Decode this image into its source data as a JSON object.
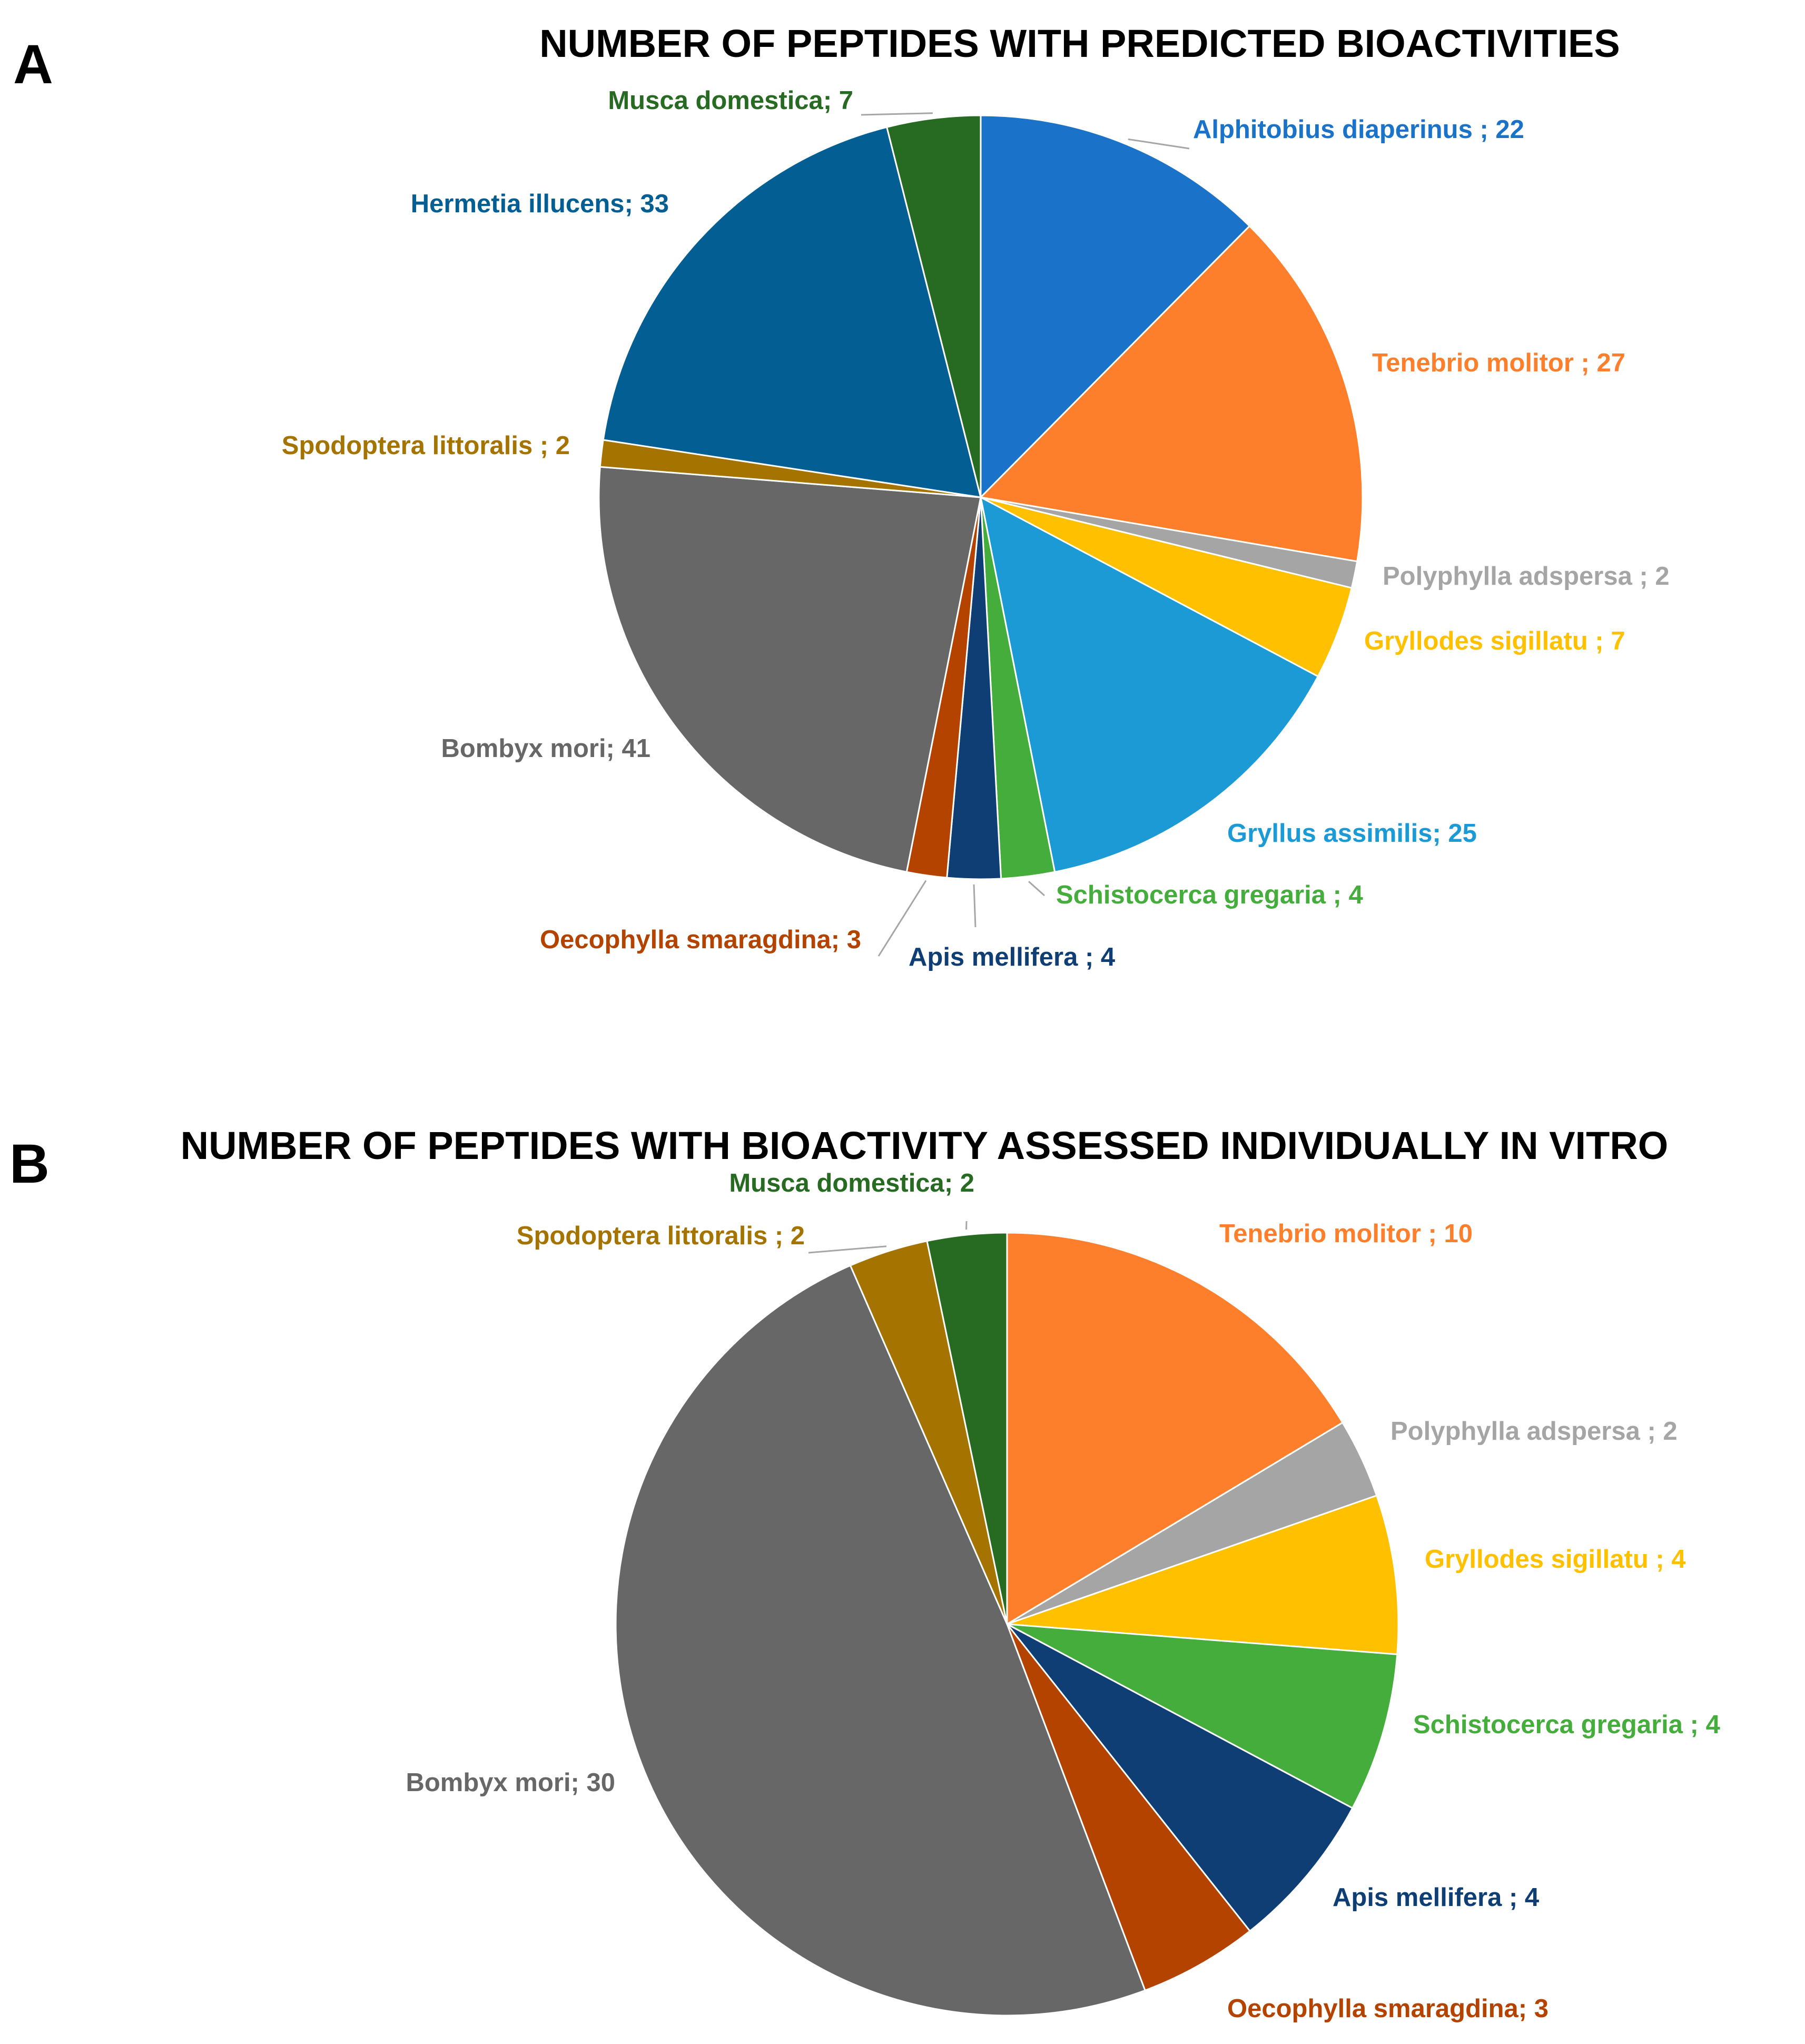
{
  "panel_labels": [
    "A",
    "B"
  ],
  "chart_data": [
    {
      "type": "pie",
      "title": "NUMBER OF PEPTIDES WITH PREDICTED BIOACTIVITIES",
      "slices": [
        {
          "name": "Alphitobius diaperinus",
          "value": 22,
          "label": "Alphitobius diaperinus ; 22",
          "color": "#1a73c8"
        },
        {
          "name": "Tenebrio molitor",
          "value": 27,
          "label": "Tenebrio molitor ; 27",
          "color": "#fd7f2c"
        },
        {
          "name": "Polyphylla adspersa",
          "value": 2,
          "label": "Polyphylla adspersa ; 2",
          "color": "#a5a5a5"
        },
        {
          "name": "Gryllodes sigillatu",
          "value": 7,
          "label": "Gryllodes sigillatu ; 7",
          "color": "#ffc000"
        },
        {
          "name": "Gryllus assimilis",
          "value": 25,
          "label": "Gryllus assimilis; 25",
          "color": "#1b9ad6"
        },
        {
          "name": "Schistocerca gregaria",
          "value": 4,
          "label": "Schistocerca gregaria ; 4",
          "color": "#44ad3b"
        },
        {
          "name": "Apis mellifera",
          "value": 4,
          "label": "Apis mellifera ; 4",
          "color": "#0e3e74"
        },
        {
          "name": "Oecophylla smaragdina",
          "value": 3,
          "label": "Oecophylla smaragdina; 3",
          "color": "#b54300"
        },
        {
          "name": "Bombyx mori",
          "value": 41,
          "label": "Bombyx mori; 41",
          "color": "#676767"
        },
        {
          "name": "Spodoptera littoralis",
          "value": 2,
          "label": "Spodoptera littoralis ; 2",
          "color": "#a57300"
        },
        {
          "name": "Hermetia illucens",
          "value": 33,
          "label": "Hermetia illucens; 33",
          "color": "#035f93"
        },
        {
          "name": "Musca domestica",
          "value": 7,
          "label": "Musca domestica; 7",
          "color": "#276a22"
        }
      ]
    },
    {
      "type": "pie",
      "title": "NUMBER OF PEPTIDES WITH BIOACTIVITY ASSESSED INDIVIDUALLY IN VITRO",
      "slices": [
        {
          "name": "Tenebrio molitor",
          "value": 10,
          "label": "Tenebrio molitor ; 10",
          "color": "#fd7f2c"
        },
        {
          "name": "Polyphylla adspersa",
          "value": 2,
          "label": "Polyphylla adspersa ; 2",
          "color": "#a5a5a5"
        },
        {
          "name": "Gryllodes sigillatu",
          "value": 4,
          "label": "Gryllodes sigillatu ; 4",
          "color": "#ffc000"
        },
        {
          "name": "Schistocerca gregaria",
          "value": 4,
          "label": "Schistocerca gregaria ; 4",
          "color": "#44ad3b"
        },
        {
          "name": "Apis mellifera",
          "value": 4,
          "label": "Apis mellifera ; 4",
          "color": "#0e3e74"
        },
        {
          "name": "Oecophylla smaragdina",
          "value": 3,
          "label": "Oecophylla smaragdina; 3",
          "color": "#b54300"
        },
        {
          "name": "Bombyx mori",
          "value": 30,
          "label": "Bombyx mori; 30",
          "color": "#676767"
        },
        {
          "name": "Spodoptera littoralis",
          "value": 2,
          "label": "Spodoptera littoralis ; 2",
          "color": "#a57300"
        },
        {
          "name": "Musca domestica",
          "value": 2,
          "label": "Musca domestica; 2",
          "color": "#276a22"
        }
      ]
    }
  ]
}
